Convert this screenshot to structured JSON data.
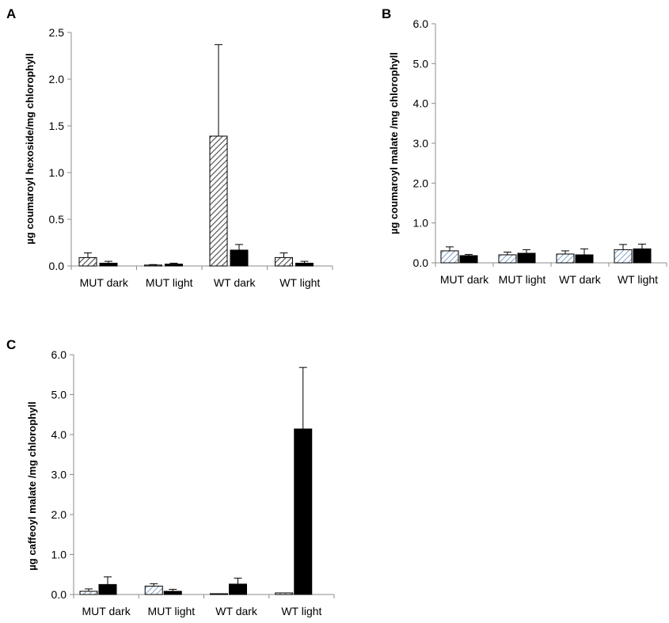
{
  "chart_data": [
    {
      "type": "bar",
      "panel": "A",
      "ylabel": "µg coumaroyl hexoside/mg chlorophyll",
      "ylim": [
        0,
        2.5
      ],
      "yticks": [
        "0.0",
        "0.5",
        "1.0",
        "1.5",
        "2.0",
        "2.5"
      ],
      "categories": [
        "MUT dark",
        "MUT light",
        "WT dark",
        "WT light"
      ],
      "series": [
        {
          "style": "hatch-gray",
          "values": [
            0.09,
            0.01,
            1.39,
            0.09
          ],
          "errors": [
            0.05,
            0.005,
            0.98,
            0.05
          ]
        },
        {
          "style": "solid-black",
          "values": [
            0.03,
            0.02,
            0.17,
            0.03
          ],
          "errors": [
            0.02,
            0.01,
            0.06,
            0.02
          ]
        }
      ]
    },
    {
      "type": "bar",
      "panel": "B",
      "ylabel": "µg coumaroyl malate /mg chlorophyll",
      "ylim": [
        0,
        6.0
      ],
      "yticks": [
        "0.0",
        "1.0",
        "2.0",
        "3.0",
        "4.0",
        "5.0",
        "6.0"
      ],
      "categories": [
        "MUT dark",
        "MUT light",
        "WT dark",
        "WT light"
      ],
      "series": [
        {
          "style": "hatch-blue",
          "values": [
            0.3,
            0.2,
            0.22,
            0.33
          ],
          "errors": [
            0.1,
            0.07,
            0.08,
            0.13
          ]
        },
        {
          "style": "solid-black",
          "values": [
            0.18,
            0.24,
            0.2,
            0.35
          ],
          "errors": [
            0.03,
            0.09,
            0.15,
            0.12
          ]
        }
      ]
    },
    {
      "type": "bar",
      "panel": "C",
      "ylabel": "µg caffeoyl malate /mg chlorophyll",
      "ylim": [
        0,
        6.0
      ],
      "yticks": [
        "0.0",
        "1.0",
        "2.0",
        "3.0",
        "4.0",
        "5.0",
        "6.0"
      ],
      "categories": [
        "MUT dark",
        "MUT light",
        "WT dark",
        "WT light"
      ],
      "series": [
        {
          "style": "hatch-blue",
          "values": [
            0.08,
            0.21,
            0.02,
            0.04
          ],
          "errors": [
            0.06,
            0.06,
            0.0,
            0.0
          ]
        },
        {
          "style": "solid-black",
          "values": [
            0.25,
            0.08,
            0.26,
            4.14
          ],
          "errors": [
            0.19,
            0.05,
            0.15,
            1.54
          ]
        }
      ]
    }
  ]
}
